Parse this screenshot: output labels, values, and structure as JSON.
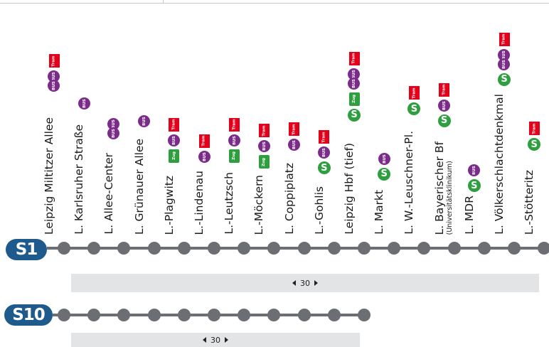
{
  "stations": [
    {
      "name": "Leipzig Miltitzer Allee",
      "sub": "",
      "icons": [
        "busbus",
        "tram"
      ]
    },
    {
      "name": "L. Karlsruher Straße",
      "sub": "",
      "icons": [
        "bus"
      ]
    },
    {
      "name": "L. Allee-Center",
      "sub": "",
      "icons": [
        "busbus"
      ]
    },
    {
      "name": "L. Grünauer Allee",
      "sub": "",
      "icons": [
        "bus"
      ]
    },
    {
      "name": "L.-Plagwitz",
      "sub": "",
      "icons": [
        "zug",
        "bus",
        "tram"
      ]
    },
    {
      "name": "L.-Lindenau",
      "sub": "",
      "icons": [
        "bus",
        "tram"
      ]
    },
    {
      "name": "L.-Leutzsch",
      "sub": "",
      "icons": [
        "zug",
        "bus",
        "tram"
      ]
    },
    {
      "name": "L.-Möckern",
      "sub": "",
      "icons": [
        "zug",
        "bus",
        "tram"
      ]
    },
    {
      "name": "L. Coppiplatz",
      "sub": "",
      "icons": [
        "bus",
        "tram"
      ]
    },
    {
      "name": "L.-Gohlis",
      "sub": "",
      "icons": [
        "s",
        "bus",
        "tram"
      ]
    },
    {
      "name": "Leipzig Hbf (tief)",
      "sub": "",
      "icons": [
        "s",
        "zug",
        "busbus",
        "tram"
      ]
    },
    {
      "name": "L. Markt",
      "sub": "",
      "icons": [
        "s",
        "bus"
      ]
    },
    {
      "name": "L. W.-Leuschner-Pl.",
      "sub": "",
      "icons": [
        "s",
        "tram"
      ]
    },
    {
      "name": "L. Bayerischer Bf",
      "sub": "(Universitätsklinikum)",
      "icons": [
        "s",
        "bus",
        "tram"
      ]
    },
    {
      "name": "L. MDR",
      "sub": "",
      "icons": [
        "s",
        "bus"
      ]
    },
    {
      "name": "L. Völkerschlachtdenkmal",
      "sub": "",
      "icons": [
        "s",
        "busbus",
        "tram"
      ]
    },
    {
      "name": "L.-Stötteritz",
      "sub": "",
      "icons": [
        "s",
        "tram"
      ]
    }
  ],
  "icon_text": {
    "bus": "BUS",
    "tram": "Tram",
    "zug": "Zug",
    "s": "S"
  },
  "lines": [
    {
      "label": "S1",
      "stop_count": 17,
      "interval": "30"
    },
    {
      "label": "S10",
      "stop_count": 11,
      "interval": "30"
    }
  ],
  "colors": {
    "line_badge": "#1f5a8c",
    "track": "#6b6e73",
    "bus": "#7b2c8b",
    "tram": "#e3001b",
    "zug": "#2e9e3e",
    "sbahn": "#2e9e3e",
    "interval_bar": "#e2e4e6"
  }
}
